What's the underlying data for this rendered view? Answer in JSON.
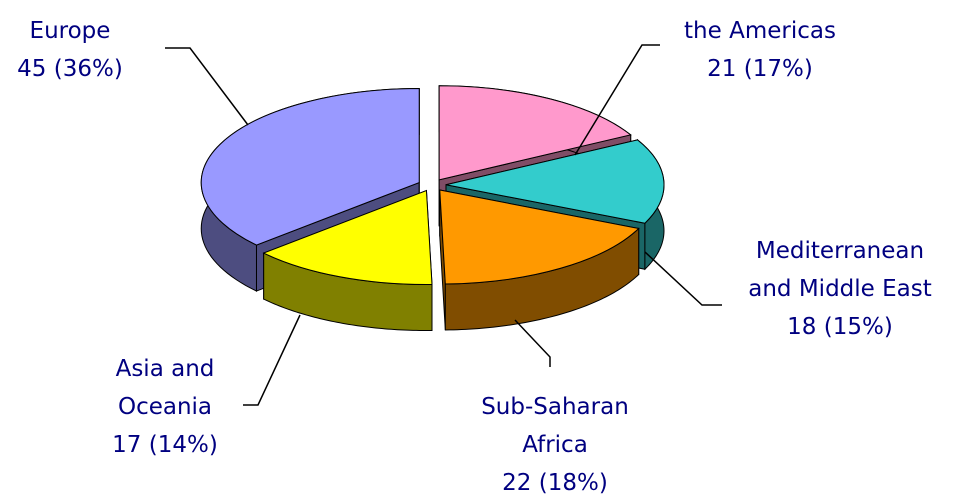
{
  "chart_data": {
    "type": "pie",
    "categories": [
      "Europe",
      "the Americas",
      "Mediterranean and Middle East",
      "Sub-Saharan Africa",
      "Asia and Oceania"
    ],
    "values": [
      45,
      21,
      18,
      22,
      17
    ],
    "value_labels": [
      "45 (36%)",
      "21 (17%)",
      "18 (15%)",
      "22 (18%)",
      "17 (14%)"
    ],
    "colors": [
      "#9999ff",
      "#ff99cc",
      "#33cccc",
      "#ff9900",
      "#ffff00"
    ]
  }
}
